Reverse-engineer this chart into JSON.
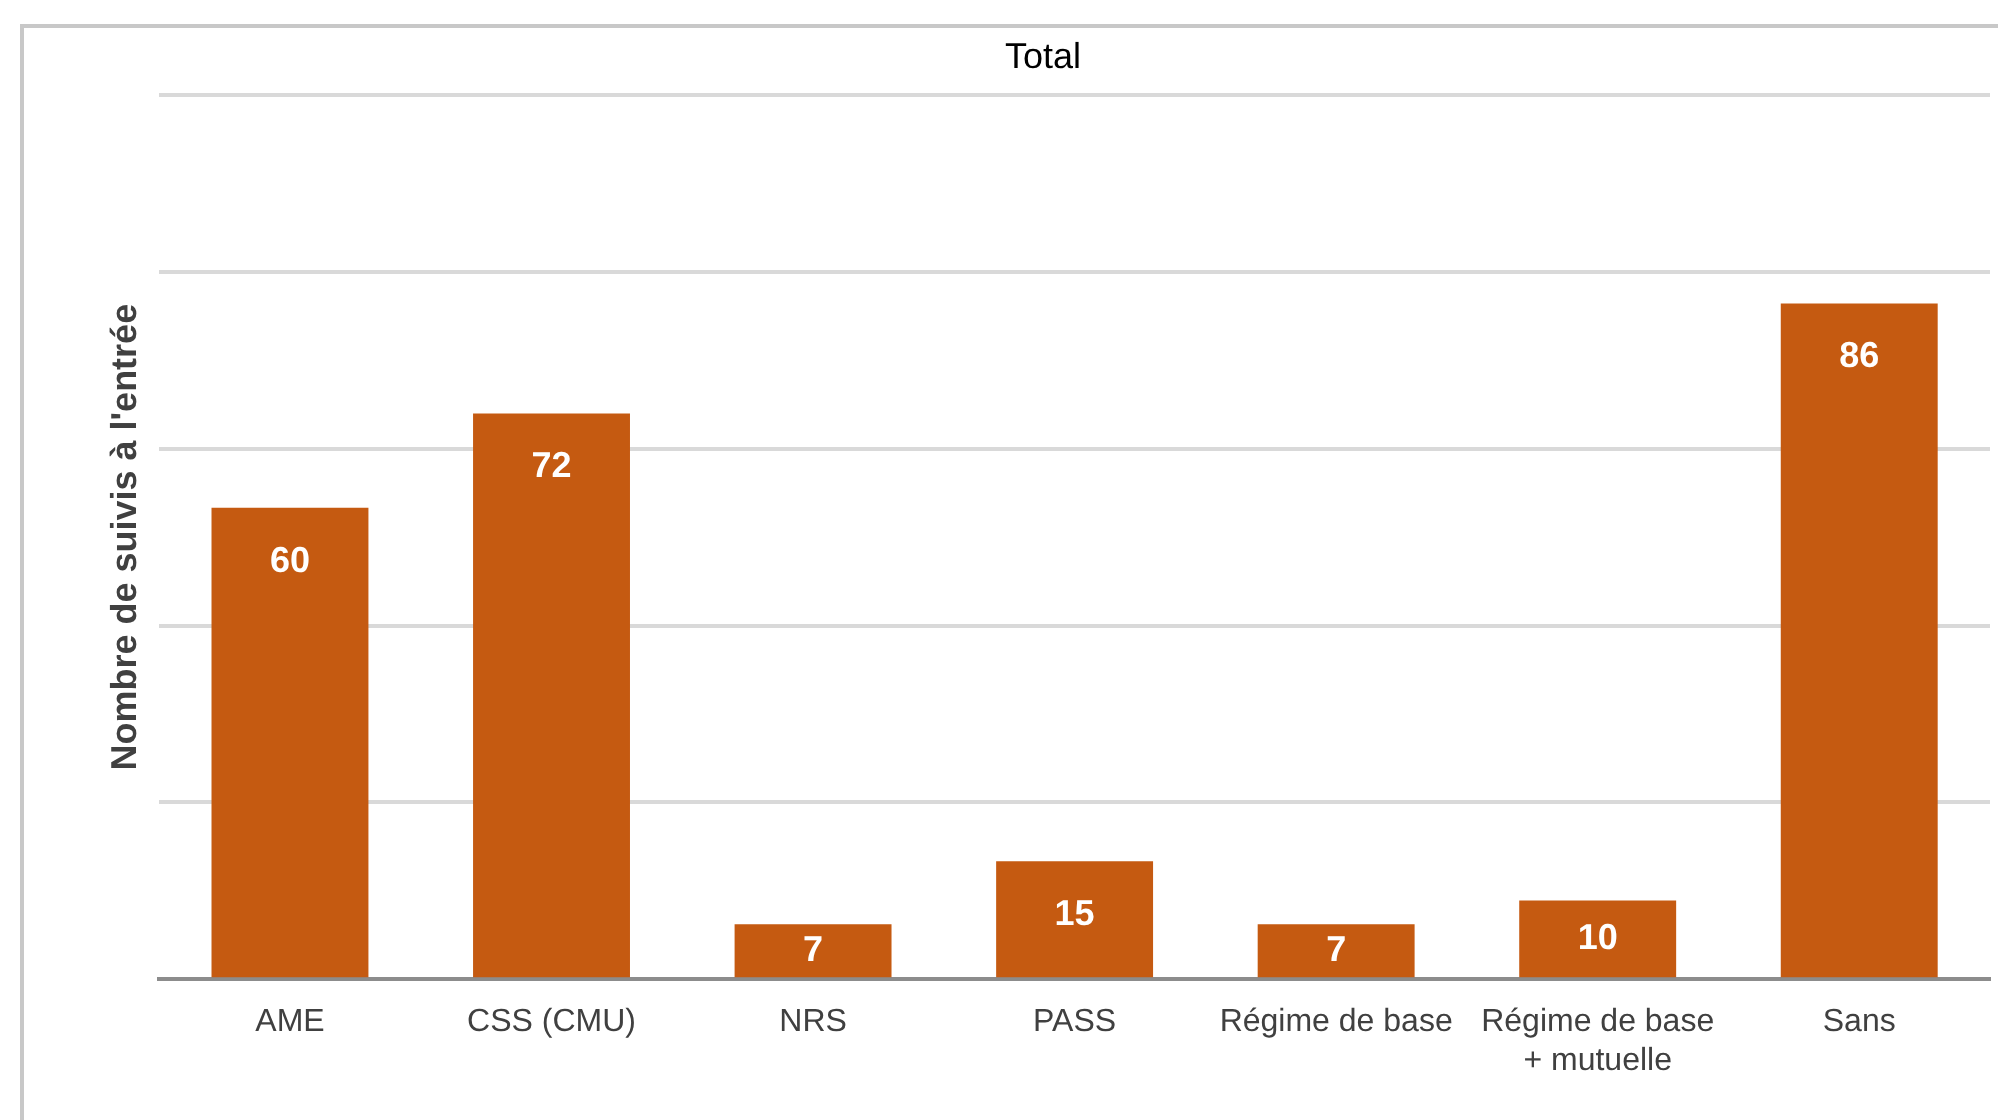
{
  "chart_data": {
    "type": "bar",
    "title": "Total",
    "ylabel": "Nombre de suivis à l'entrée",
    "categories": [
      "AME",
      "CSS (CMU)",
      "NRS",
      "PASS",
      "Régime de base",
      "Régime de base + mutuelle",
      "Sans"
    ],
    "values": [
      60,
      72,
      7,
      15,
      7,
      10,
      86
    ],
    "color": "#c55a11",
    "ylim": [
      0,
      112.5
    ],
    "yticks": [
      {
        "value": 0,
        "label": null
      },
      {
        "value": 22.5,
        "label": null
      },
      {
        "value": 45,
        "label": null
      },
      {
        "value": 67.5,
        "label": null
      },
      {
        "value": 90,
        "label": null
      },
      {
        "value": 112.5,
        "label": null
      }
    ],
    "grid": "y",
    "tick_labels": "x",
    "data_labels": true,
    "legend": false
  }
}
